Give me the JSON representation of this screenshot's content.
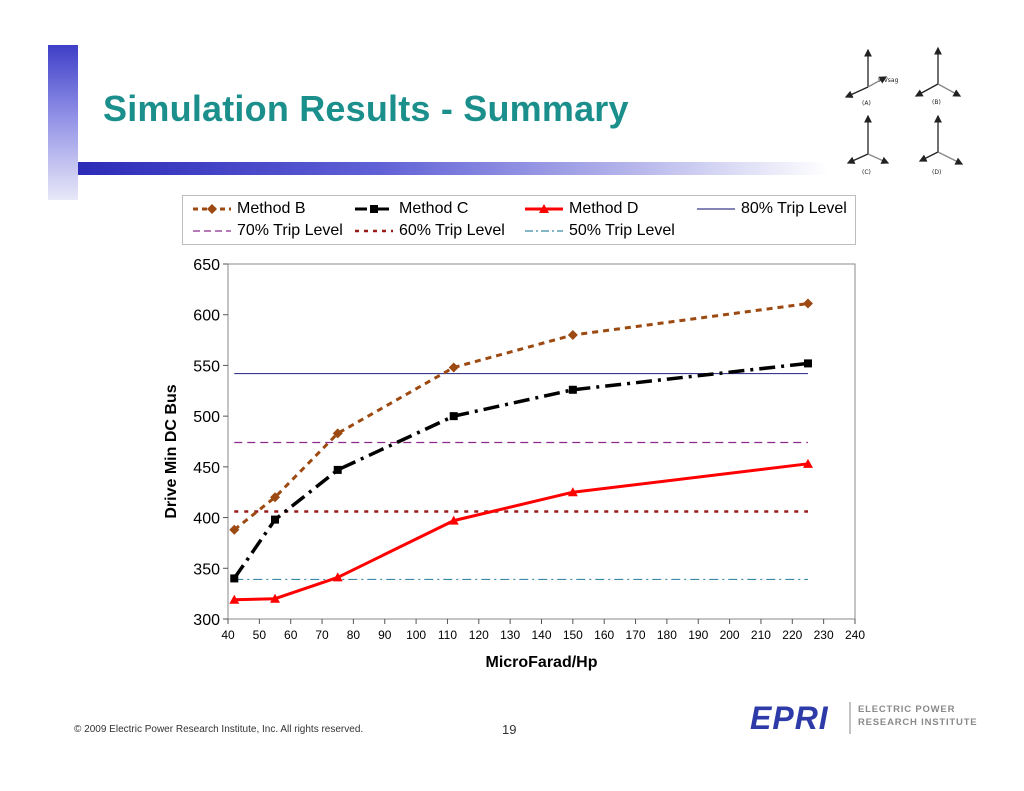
{
  "slide": {
    "title": "Simulation Results - Summary",
    "page_number": "19",
    "copyright": "© 2009 Electric Power Research Institute, Inc. All rights reserved.",
    "logo_text": "EPRI",
    "logo_caption_line1": "ELECTRIC POWER",
    "logo_caption_line2": "RESEARCH INSTITUTE",
    "phasor_labels": [
      "(A)",
      "(B)",
      "(C)",
      "(D)"
    ],
    "phasor_annotation": "%Vsag"
  },
  "colors": {
    "title": "#1b8f8c",
    "method_b": "#9c4a12",
    "method_c": "#000000",
    "method_d": "#ff0000",
    "trip_80": "#3a3a8c",
    "trip_70": "#8b2a8b",
    "trip_60": "#9a1a1a",
    "trip_50": "#3a8aa8"
  },
  "chart_data": {
    "type": "line",
    "title": "",
    "xlabel": "MicroFarad/Hp",
    "ylabel": "Drive Min DC Bus",
    "xlim": [
      40,
      240
    ],
    "ylim": [
      300,
      650
    ],
    "xticks": [
      40,
      50,
      60,
      70,
      80,
      90,
      100,
      110,
      120,
      130,
      140,
      150,
      160,
      170,
      180,
      190,
      200,
      210,
      220,
      230,
      240
    ],
    "yticks": [
      300,
      350,
      400,
      450,
      500,
      550,
      600,
      650
    ],
    "legend_position": "top",
    "series": [
      {
        "name": "Method B",
        "key": "method_b",
        "style": "dash-diamond",
        "x": [
          42,
          55,
          75,
          112,
          150,
          225
        ],
        "y": [
          388,
          420,
          483,
          548,
          580,
          611
        ]
      },
      {
        "name": "Method C",
        "key": "method_c",
        "style": "dashdot-square",
        "x": [
          42,
          55,
          75,
          112,
          150,
          225
        ],
        "y": [
          340,
          398,
          447,
          500,
          526,
          552
        ]
      },
      {
        "name": "Method D",
        "key": "method_d",
        "style": "solid-triangle",
        "x": [
          42,
          55,
          75,
          112,
          150,
          225
        ],
        "y": [
          319,
          320,
          341,
          397,
          425,
          453
        ]
      },
      {
        "name": "80% Trip Level",
        "key": "trip_80",
        "style": "solid-thin",
        "x": [
          42,
          225
        ],
        "y": [
          542,
          542
        ]
      },
      {
        "name": "70% Trip Level",
        "key": "trip_70",
        "style": "longdash-thin",
        "x": [
          42,
          225
        ],
        "y": [
          474,
          474
        ]
      },
      {
        "name": "60% Trip Level",
        "key": "trip_60",
        "style": "dash-thick",
        "x": [
          42,
          225
        ],
        "y": [
          406,
          406
        ]
      },
      {
        "name": "50% Trip Level",
        "key": "trip_50",
        "style": "dashdot-thin",
        "x": [
          42,
          225
        ],
        "y": [
          339,
          339
        ]
      }
    ]
  }
}
